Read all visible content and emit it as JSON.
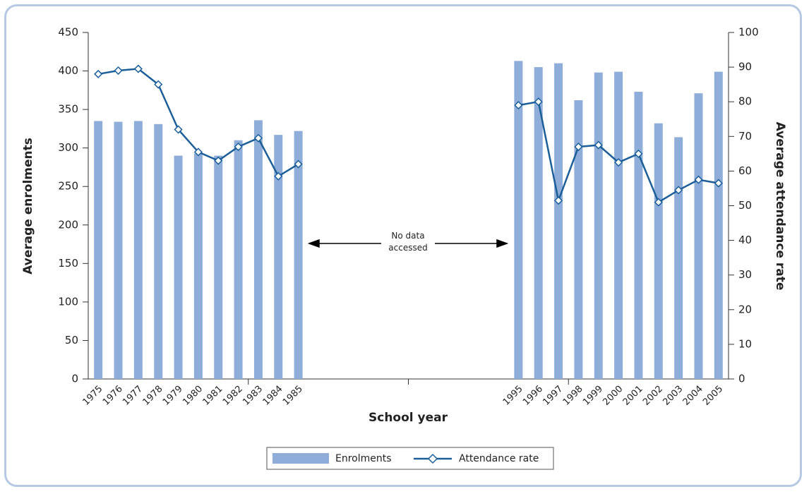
{
  "chart_data": {
    "type": "bar_line",
    "x_label": "School year",
    "y_label": "Average enrolments",
    "y2_label": "Average attendance rate",
    "annotation": "No data accessed",
    "categories": [
      "1975",
      "1976",
      "1977",
      "1978",
      "1979",
      "1980",
      "1981",
      "1982",
      "1983",
      "1984",
      "1985",
      null,
      null,
      null,
      null,
      null,
      null,
      null,
      null,
      null,
      null,
      "1995",
      "1996",
      "1997",
      "1998",
      "1999",
      "2000",
      "2001",
      "2002",
      "2003",
      "2004",
      "2005"
    ],
    "series": [
      {
        "name": "Enrolments",
        "type": "bar",
        "color": "#8fadd9",
        "values": [
          335,
          334,
          335,
          331,
          290,
          293,
          290,
          310,
          336,
          317,
          322,
          null,
          null,
          null,
          null,
          null,
          null,
          null,
          null,
          null,
          null,
          413,
          405,
          410,
          362,
          398,
          399,
          373,
          332,
          314,
          371,
          399
        ]
      },
      {
        "name": "Attendance rate",
        "type": "line",
        "axis": "y2",
        "color": "#1b5e98",
        "values": [
          88,
          89,
          89.5,
          85,
          72,
          65.5,
          63,
          67,
          69.5,
          58.5,
          62,
          null,
          null,
          null,
          null,
          null,
          null,
          null,
          null,
          null,
          null,
          79,
          80,
          51.5,
          67,
          67.5,
          62.5,
          65,
          51,
          54.5,
          57.5,
          56.5
        ]
      }
    ],
    "ylim": [
      0,
      450
    ],
    "yticks": [
      0,
      50,
      100,
      150,
      200,
      250,
      300,
      350,
      400,
      450
    ],
    "y2lim": [
      0,
      100
    ],
    "y2ticks": [
      0,
      10,
      20,
      30,
      40,
      50,
      60,
      70,
      80,
      90,
      100
    ]
  }
}
